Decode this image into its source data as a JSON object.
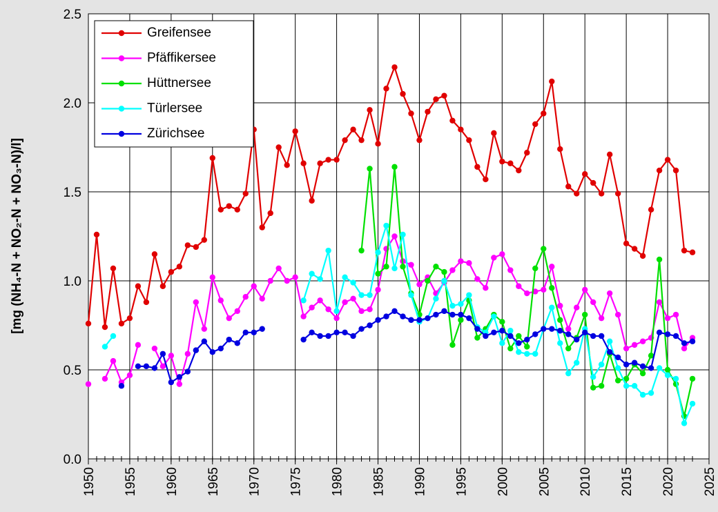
{
  "chart_data": {
    "type": "line",
    "y_label": "[mg (NH₄-N + NO₂-N + NO₃-N)/l]",
    "x": [
      1950,
      1951,
      1952,
      1953,
      1954,
      1955,
      1956,
      1957,
      1958,
      1959,
      1960,
      1961,
      1962,
      1963,
      1964,
      1965,
      1966,
      1967,
      1968,
      1969,
      1970,
      1971,
      1972,
      1973,
      1974,
      1975,
      1976,
      1977,
      1978,
      1979,
      1980,
      1981,
      1982,
      1983,
      1984,
      1985,
      1986,
      1987,
      1988,
      1989,
      1990,
      1991,
      1992,
      1993,
      1994,
      1995,
      1996,
      1997,
      1998,
      1999,
      2000,
      2001,
      2002,
      2003,
      2004,
      2005,
      2006,
      2007,
      2008,
      2009,
      2010,
      2011,
      2012,
      2013,
      2014,
      2015,
      2016,
      2017,
      2018,
      2019,
      2020,
      2021,
      2022,
      2023
    ],
    "series": [
      {
        "name": "Greifensee",
        "color": "#e00000",
        "values": [
          0.76,
          1.26,
          0.74,
          1.07,
          0.76,
          0.79,
          0.97,
          0.88,
          1.15,
          0.97,
          1.05,
          1.08,
          1.2,
          1.19,
          1.23,
          1.69,
          1.4,
          1.42,
          1.4,
          1.49,
          1.85,
          1.3,
          1.38,
          1.75,
          1.65,
          1.84,
          1.66,
          1.45,
          1.66,
          1.68,
          1.68,
          1.79,
          1.85,
          1.79,
          1.96,
          1.77,
          2.08,
          2.2,
          2.05,
          1.94,
          1.79,
          1.95,
          2.02,
          2.04,
          1.9,
          1.85,
          1.79,
          1.64,
          1.57,
          1.83,
          1.67,
          1.66,
          1.62,
          1.72,
          1.88,
          1.94,
          2.12,
          1.74,
          1.53,
          1.49,
          1.6,
          1.55,
          1.49,
          1.71,
          1.49,
          1.21,
          1.18,
          1.14,
          1.4,
          1.62,
          1.68,
          1.62,
          1.17,
          1.16
        ]
      },
      {
        "name": "Pfäffikersee",
        "color": "#ff00ff",
        "values": [
          0.42,
          null,
          0.45,
          0.55,
          0.43,
          0.47,
          0.64,
          null,
          0.62,
          0.52,
          0.58,
          0.42,
          0.59,
          0.88,
          0.73,
          1.02,
          0.89,
          0.79,
          0.83,
          0.91,
          0.97,
          0.9,
          1.0,
          1.07,
          1.0,
          1.02,
          0.8,
          0.85,
          0.89,
          0.84,
          0.79,
          0.88,
          0.9,
          0.83,
          0.84,
          0.95,
          1.18,
          1.25,
          1.11,
          1.09,
          0.98,
          1.02,
          0.93,
          0.99,
          1.06,
          1.11,
          1.1,
          1.01,
          0.96,
          1.13,
          1.15,
          1.06,
          0.97,
          0.93,
          0.94,
          0.95,
          1.08,
          0.86,
          0.73,
          0.85,
          0.95,
          0.88,
          0.79,
          0.93,
          0.81,
          0.62,
          0.64,
          0.66,
          0.68,
          0.88,
          0.79,
          0.81,
          0.62,
          0.68
        ]
      },
      {
        "name": "Hüttnersee",
        "color": "#00e000",
        "values": [
          null,
          null,
          null,
          null,
          null,
          null,
          null,
          null,
          null,
          null,
          null,
          null,
          null,
          null,
          null,
          null,
          null,
          null,
          null,
          null,
          null,
          null,
          null,
          null,
          null,
          null,
          null,
          null,
          null,
          null,
          null,
          null,
          null,
          1.17,
          1.63,
          1.04,
          1.08,
          1.64,
          1.08,
          0.93,
          0.81,
          1.0,
          1.08,
          1.05,
          0.64,
          0.78,
          0.89,
          0.68,
          0.73,
          0.81,
          0.77,
          0.62,
          0.69,
          0.63,
          1.07,
          1.18,
          0.96,
          0.78,
          0.62,
          0.68,
          0.81,
          0.4,
          0.41,
          0.59,
          0.44,
          0.45,
          0.53,
          0.48,
          0.58,
          1.12,
          0.5,
          0.42,
          0.24,
          0.45
        ]
      },
      {
        "name": "Türlersee",
        "color": "#00ffff",
        "values": [
          null,
          null,
          0.63,
          0.69,
          null,
          null,
          null,
          null,
          null,
          null,
          null,
          null,
          null,
          null,
          null,
          null,
          null,
          null,
          null,
          null,
          null,
          null,
          null,
          null,
          null,
          null,
          0.89,
          1.04,
          1.01,
          1.17,
          0.83,
          1.02,
          0.99,
          0.92,
          0.92,
          1.16,
          1.31,
          1.07,
          1.26,
          0.92,
          0.77,
          0.79,
          0.9,
          1.0,
          0.86,
          0.87,
          0.92,
          0.74,
          0.71,
          0.8,
          0.65,
          0.72,
          0.6,
          0.59,
          0.59,
          0.73,
          0.85,
          0.65,
          0.48,
          0.54,
          0.73,
          0.46,
          0.53,
          0.66,
          0.51,
          0.41,
          0.41,
          0.36,
          0.37,
          0.51,
          0.47,
          0.45,
          0.2,
          0.31
        ]
      },
      {
        "name": "Zürichsee",
        "color": "#0000e0",
        "values": [
          null,
          null,
          null,
          null,
          0.41,
          null,
          0.52,
          0.52,
          0.51,
          0.59,
          0.43,
          0.46,
          0.49,
          0.61,
          0.66,
          0.6,
          0.62,
          0.67,
          0.65,
          0.71,
          0.71,
          0.73,
          null,
          null,
          null,
          null,
          0.67,
          0.71,
          0.69,
          0.69,
          0.71,
          0.71,
          0.69,
          0.73,
          0.75,
          0.78,
          0.8,
          0.83,
          0.8,
          0.78,
          0.78,
          0.79,
          0.81,
          0.83,
          0.81,
          0.81,
          0.79,
          0.73,
          0.69,
          0.71,
          0.72,
          0.69,
          0.65,
          0.67,
          0.7,
          0.73,
          0.73,
          0.72,
          0.7,
          0.67,
          0.71,
          0.69,
          0.69,
          0.6,
          0.57,
          0.53,
          0.54,
          0.52,
          0.51,
          0.71,
          0.7,
          0.69,
          0.65,
          0.66
        ]
      }
    ],
    "xlim": [
      1950,
      2025
    ],
    "xticks": [
      1950,
      1955,
      1960,
      1965,
      1970,
      1975,
      1980,
      1985,
      1990,
      1995,
      2000,
      2005,
      2010,
      2015,
      2020,
      2025
    ],
    "ylim": [
      0,
      2.5
    ],
    "yticks": [
      {
        "value": 0,
        "label": "0.0"
      },
      0.5,
      {
        "value": 1,
        "label": "1.0"
      },
      1.5,
      {
        "value": 2,
        "label": "2.0"
      },
      2.5
    ],
    "grid": true,
    "legend": "upper left"
  }
}
